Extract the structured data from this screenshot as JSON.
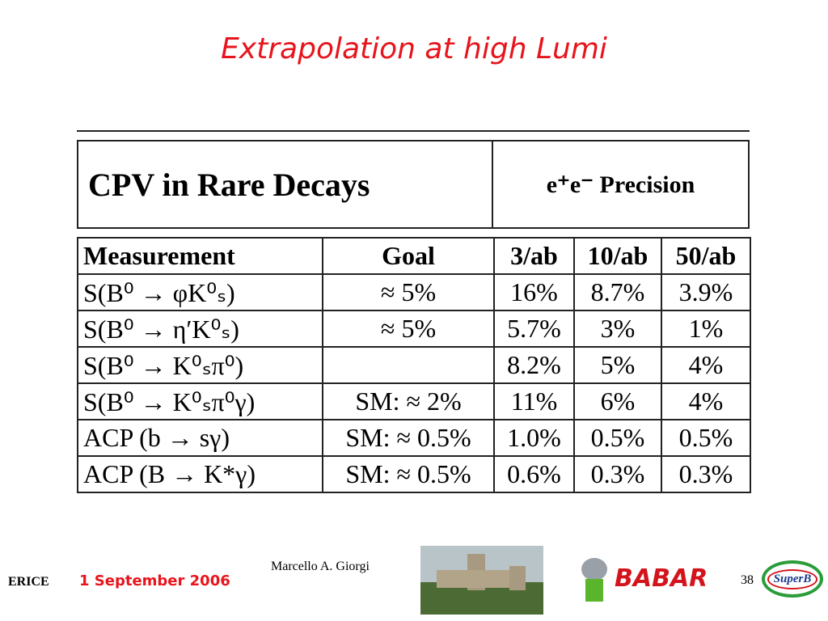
{
  "title": "Extrapolation at high Lumi",
  "table_header": {
    "left": "CPV in Rare Decays",
    "right": "e⁺e⁻ Precision"
  },
  "table": {
    "columns": [
      "Measurement",
      "Goal",
      "3/ab",
      "10/ab",
      "50/ab"
    ],
    "rows": [
      [
        "S(B⁰ → φK⁰ₛ)",
        "≈ 5%",
        "16%",
        "8.7%",
        "3.9%"
      ],
      [
        "S(B⁰ → η′K⁰ₛ)",
        "≈ 5%",
        "5.7%",
        "3%",
        "1%"
      ],
      [
        "S(B⁰ → K⁰ₛπ⁰)",
        null,
        "8.2%",
        "5%",
        "4%"
      ],
      [
        "S(B⁰ → K⁰ₛπ⁰γ)",
        "SM: ≈ 2%",
        "11%",
        "6%",
        "4%"
      ],
      [
        "ACP (b → sγ)",
        "SM: ≈ 0.5%",
        "1.0%",
        "0.5%",
        "0.5%"
      ],
      [
        "ACP (B → K*γ)",
        "SM: ≈ 0.5%",
        "0.6%",
        "0.3%",
        "0.3%"
      ]
    ]
  },
  "footer": {
    "left": "ERICE",
    "date": "1 September 2006",
    "author": "Marcello A. Giorgi",
    "page": "38",
    "logo": "BABAR",
    "logo2": "SuperB"
  }
}
